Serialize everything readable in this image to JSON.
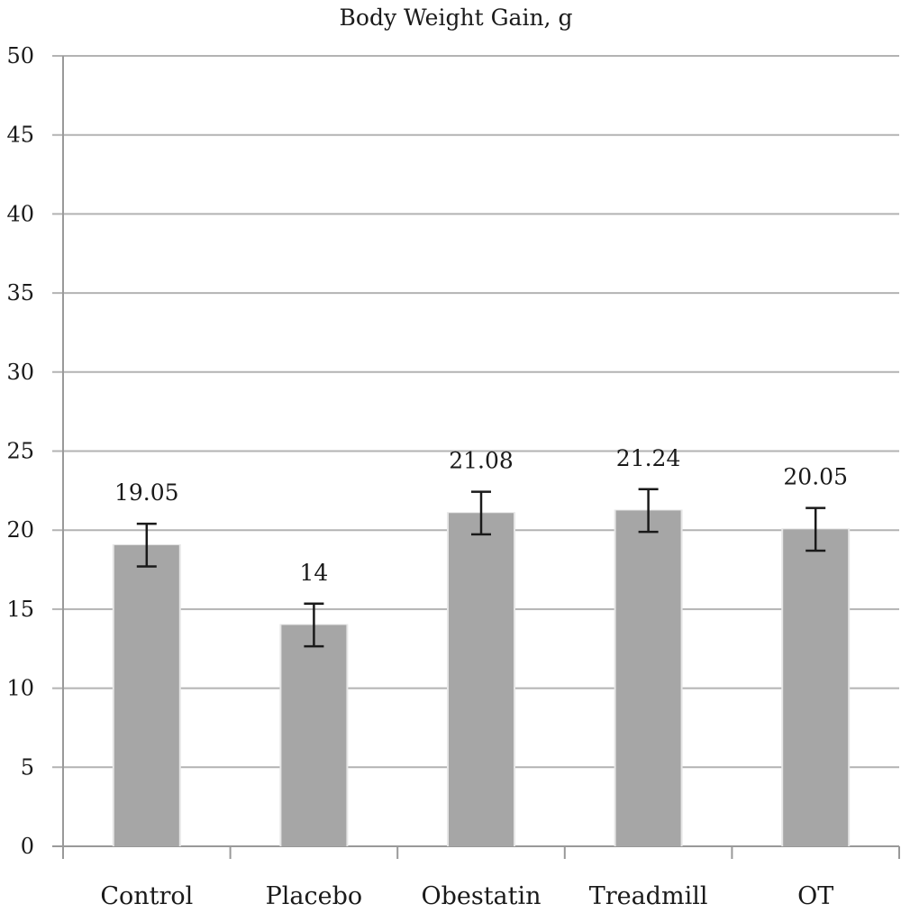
{
  "chart_data": {
    "type": "bar",
    "title": "Body Weight Gain, g",
    "xlabel": "",
    "ylabel": "",
    "categories": [
      "Control",
      "Placebo",
      "Obestatin",
      "Treadmill",
      "OT"
    ],
    "values": [
      19.05,
      14,
      21.08,
      21.24,
      20.05
    ],
    "data_labels": [
      "19.05",
      "14",
      "21.08",
      "21.24",
      "20.05"
    ],
    "error_bars": [
      1.35,
      1.35,
      1.35,
      1.35,
      1.35
    ],
    "ylim": [
      0,
      50
    ],
    "yticks": [
      0,
      5,
      10,
      15,
      20,
      25,
      30,
      35,
      40,
      45,
      50
    ],
    "grid": true,
    "legend": "none",
    "colors": {
      "bar": "#a6a6a6",
      "grid": "#b3b3b3",
      "axis": "#999999",
      "error": "#1a1a1a"
    }
  }
}
